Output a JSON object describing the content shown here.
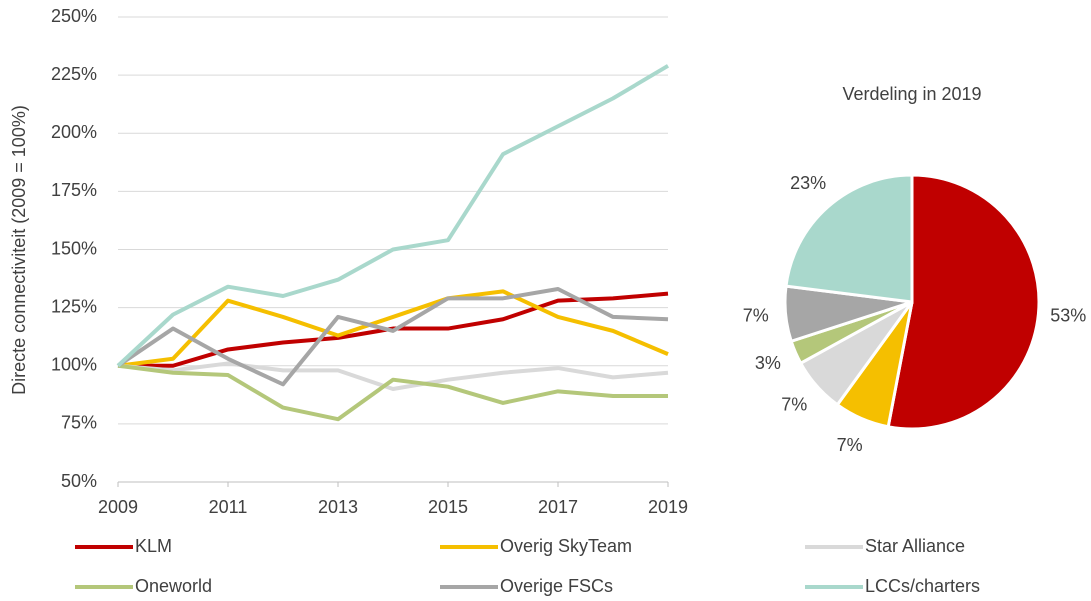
{
  "chart_data": [
    {
      "type": "line",
      "y_label": "Directe connectiviteit (2009 = 100%)",
      "x": [
        2009,
        2010,
        2011,
        2012,
        2013,
        2014,
        2015,
        2016,
        2017,
        2018,
        2019
      ],
      "xlim": [
        2009,
        2019
      ],
      "xticks": [
        2009,
        2011,
        2013,
        2015,
        2017,
        2019
      ],
      "ylim": [
        50,
        250
      ],
      "yticks": [
        {
          "value": 50,
          "label": "50%"
        },
        {
          "value": 75,
          "label": "75%"
        },
        {
          "value": 100,
          "label": "100%"
        },
        {
          "value": 125,
          "label": "125%"
        },
        {
          "value": 150,
          "label": "150%"
        },
        {
          "value": 175,
          "label": "175%"
        },
        {
          "value": 200,
          "label": "200%"
        },
        {
          "value": 225,
          "label": "225%"
        },
        {
          "value": 250,
          "label": "250%"
        }
      ],
      "grid": true,
      "legend": "bottom",
      "series": [
        {
          "name": "KLM",
          "color": "#c00000",
          "values": [
            100,
            100,
            107,
            110,
            112,
            116,
            116,
            120,
            128,
            129,
            131
          ]
        },
        {
          "name": "Overig SkyTeam",
          "color": "#f5bf00",
          "values": [
            100,
            103,
            128,
            121,
            113,
            121,
            129,
            132,
            121,
            115,
            105
          ]
        },
        {
          "name": "Star Alliance",
          "color": "#d9d9d9",
          "values": [
            100,
            98,
            101,
            98,
            98,
            90,
            94,
            97,
            99,
            95,
            97
          ]
        },
        {
          "name": "Oneworld",
          "color": "#b4c77a",
          "values": [
            100,
            97,
            96,
            82,
            77,
            94,
            91,
            84,
            89,
            87,
            87
          ]
        },
        {
          "name": "Overige FSCs",
          "color": "#a6a6a6",
          "values": [
            100,
            116,
            103,
            92,
            121,
            115,
            129,
            129,
            133,
            121,
            120
          ]
        },
        {
          "name": "LCCs/charters",
          "color": "#a9d8cc",
          "values": [
            100,
            122,
            134,
            130,
            137,
            150,
            154,
            191,
            203,
            215,
            229
          ]
        }
      ]
    },
    {
      "type": "pie",
      "title": "Verdeling in 2019",
      "values": [
        53,
        7,
        7,
        3,
        7,
        23
      ],
      "value_labels": [
        "53%",
        "7%",
        "7%",
        "3%",
        "7%",
        "23%"
      ],
      "colors": [
        "#c00000",
        "#f5bf00",
        "#d9d9d9",
        "#b4c77a",
        "#a6a6a6",
        "#a9d8cc"
      ]
    }
  ]
}
